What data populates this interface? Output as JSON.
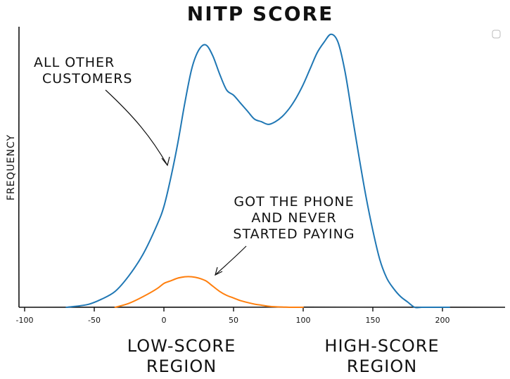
{
  "chart_data": {
    "type": "line",
    "title": "NITP SCORE",
    "xlabel": "",
    "ylabel": "FREQUENCY",
    "xlim": [
      -105,
      245
    ],
    "ylim": [
      0,
      1.0
    ],
    "xticks": [
      -100,
      -50,
      0,
      50,
      100,
      150,
      200
    ],
    "grid": false,
    "series": [
      {
        "color": "#1f77b4",
        "x": [
          -70,
          -55,
          -45,
          -35,
          -25,
          -15,
          -5,
          0,
          5,
          10,
          15,
          20,
          25,
          30,
          35,
          40,
          45,
          50,
          55,
          60,
          65,
          70,
          75,
          80,
          85,
          90,
          95,
          100,
          105,
          110,
          115,
          120,
          125,
          130,
          135,
          140,
          145,
          150,
          155,
          160,
          165,
          170,
          175,
          180,
          185,
          190,
          195,
          200,
          205
        ],
        "y": [
          0.0,
          0.01,
          0.03,
          0.06,
          0.12,
          0.2,
          0.31,
          0.38,
          0.49,
          0.62,
          0.77,
          0.9,
          0.97,
          0.99,
          0.95,
          0.88,
          0.82,
          0.8,
          0.77,
          0.74,
          0.71,
          0.7,
          0.69,
          0.7,
          0.72,
          0.75,
          0.79,
          0.84,
          0.9,
          0.96,
          1.0,
          1.03,
          1.0,
          0.89,
          0.73,
          0.57,
          0.42,
          0.29,
          0.18,
          0.11,
          0.07,
          0.04,
          0.02,
          0.0,
          0.0,
          0.0,
          0.0,
          0.0,
          0.0
        ]
      },
      {
        "color": "#ff7f0e",
        "x": [
          -35,
          -25,
          -15,
          -5,
          0,
          5,
          10,
          15,
          20,
          25,
          30,
          35,
          40,
          45,
          50,
          55,
          60,
          65,
          70,
          75,
          80,
          85,
          90,
          95,
          100
        ],
        "y": [
          0.0,
          0.015,
          0.04,
          0.07,
          0.09,
          0.1,
          0.11,
          0.115,
          0.115,
          0.11,
          0.1,
          0.08,
          0.06,
          0.045,
          0.035,
          0.025,
          0.018,
          0.012,
          0.008,
          0.004,
          0.002,
          0.001,
          0.0,
          0.0,
          0.0
        ]
      }
    ],
    "annotations": [
      {
        "lines": [
          "ALL OTHER",
          "CUSTOMERS"
        ],
        "series_index": 0
      },
      {
        "lines": [
          "GOT THE PHONE",
          "AND NEVER",
          "STARTED  PAYING"
        ],
        "series_index": 1
      }
    ],
    "region_labels": [
      {
        "lines": [
          "LOW-SCORE",
          "REGION"
        ]
      },
      {
        "lines": [
          "HIGH-SCORE",
          "REGION"
        ]
      }
    ]
  }
}
